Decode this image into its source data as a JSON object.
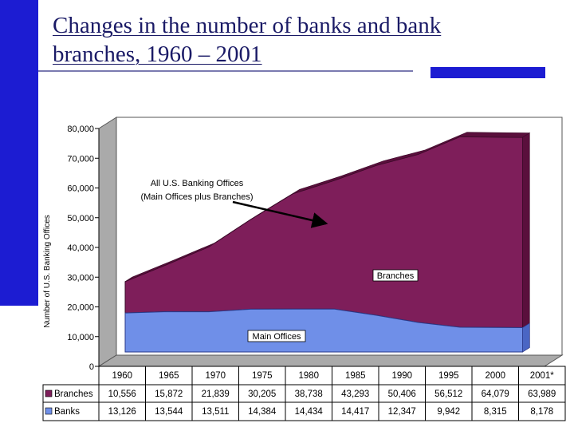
{
  "slide": {
    "title_line1": "Changes in the number of banks and bank",
    "title_line2": "branches, 1960 – 2001"
  },
  "colors": {
    "accent_bar": "#1c1cd2",
    "branches": "#7e1e5a",
    "branches_side": "#5a0f3c",
    "banks": "#6f8fe8",
    "banks_side": "#4a66c4",
    "plot_floor": "#aaaaaa",
    "plot_wall": "#ffffff"
  },
  "chart_data": {
    "type": "area",
    "stacked": true,
    "ylabel": "Number of U.S. Banking Offices",
    "ylim": [
      0,
      80000
    ],
    "yticks": [
      "0",
      "10,000",
      "20,000",
      "30,000",
      "40,000",
      "50,000",
      "60,000",
      "70,000",
      "80,000"
    ],
    "ytick_values": [
      0,
      10000,
      20000,
      30000,
      40000,
      50000,
      60000,
      70000,
      80000
    ],
    "categories": [
      "1960",
      "1965",
      "1970",
      "1975",
      "1980",
      "1985",
      "1990",
      "1995",
      "2000",
      "2001*"
    ],
    "series": [
      {
        "name": "Branches",
        "values": [
          10556,
          15872,
          21839,
          30205,
          38738,
          43293,
          50406,
          56512,
          64079,
          63989
        ],
        "labels": [
          "10,556",
          "15,872",
          "21,839",
          "30,205",
          "38,738",
          "43,293",
          "50,406",
          "56,512",
          "64,079",
          "63,989"
        ]
      },
      {
        "name": "Banks",
        "values": [
          13126,
          13544,
          13511,
          14384,
          14434,
          14417,
          12347,
          9942,
          8315,
          8178
        ],
        "labels": [
          "13,126",
          "13,544",
          "13,511",
          "14,384",
          "14,434",
          "14,417",
          "12,347",
          "9,942",
          "8,315",
          "8,178"
        ]
      }
    ],
    "annotations": {
      "total_line1": "All U.S. Banking Offices",
      "total_line2": "(Main Offices plus Branches)",
      "branches": "Branches",
      "main_offices": "Main Offices"
    },
    "legend": "data-table-below",
    "grid": false
  }
}
